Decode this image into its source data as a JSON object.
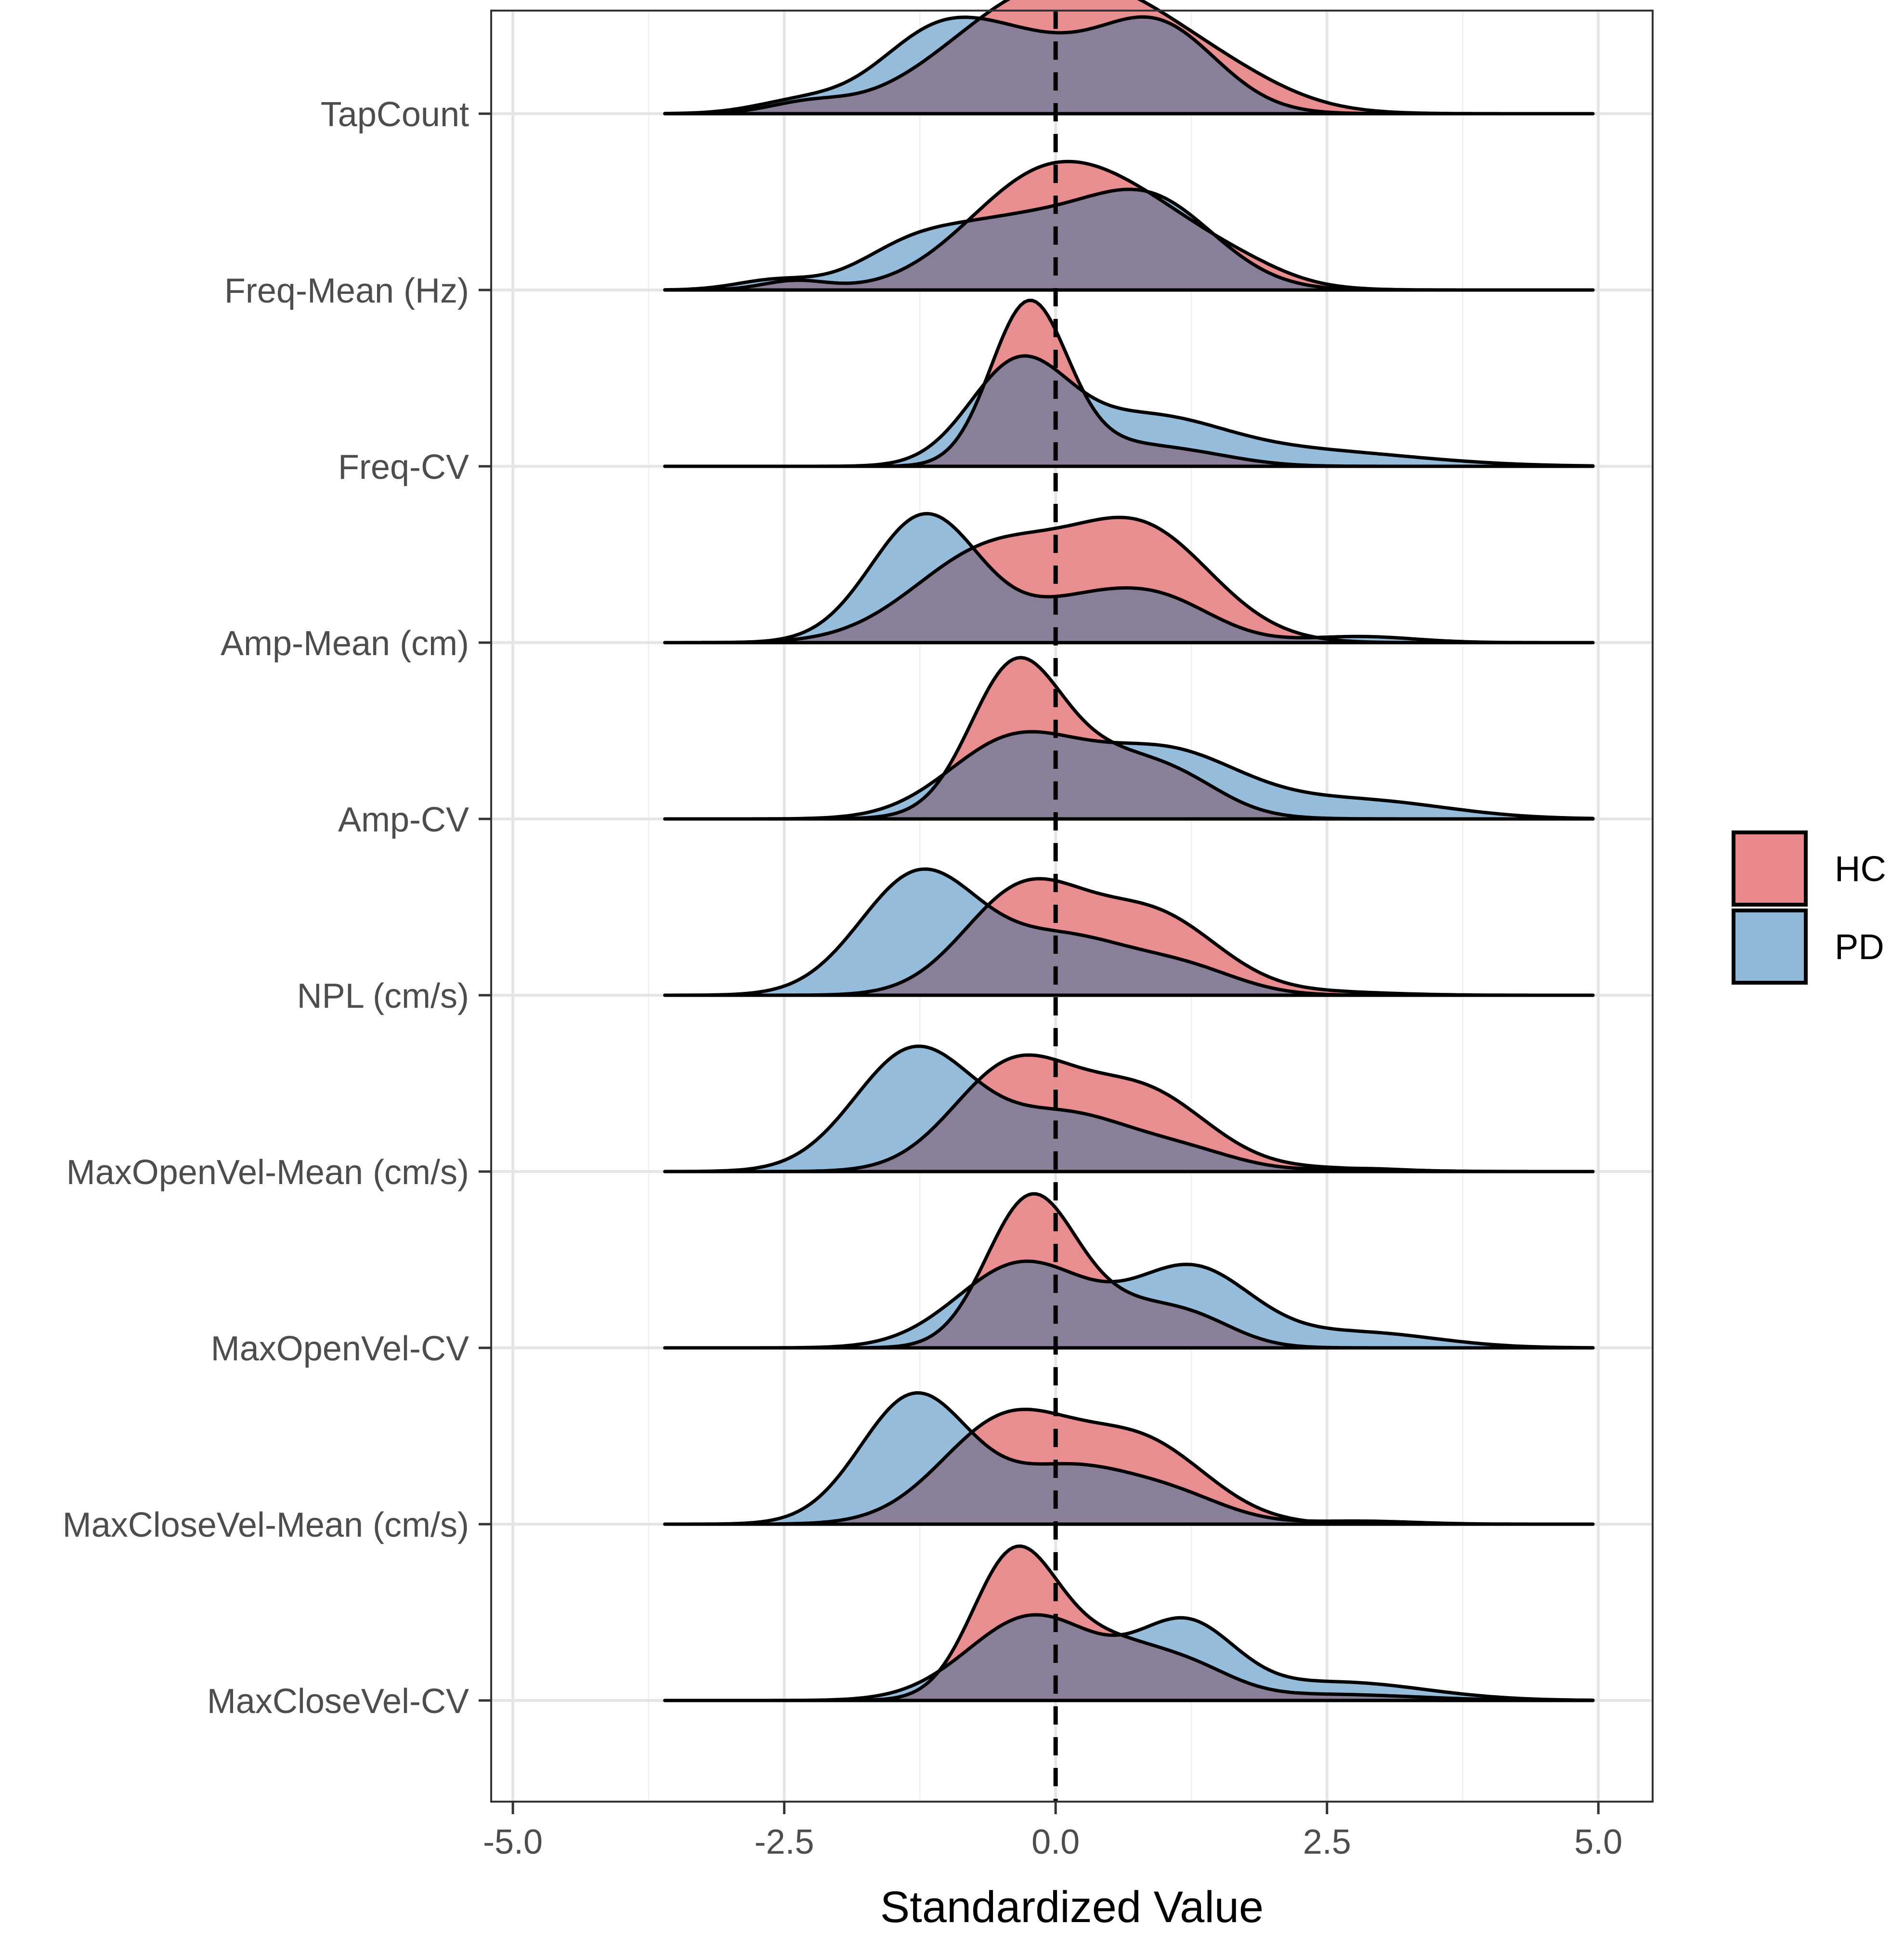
{
  "chart_data": {
    "type": "ridgeline-density",
    "title": "",
    "xlabel": "Standardized Value",
    "ylabel": "",
    "xlim": [
      -5.2,
      5.5
    ],
    "x_ticks": [
      -5.0,
      -2.5,
      0.0,
      2.5,
      5.0
    ],
    "x_tick_labels": [
      "-5.0",
      "-2.5",
      "0.0",
      "2.5",
      "5.0"
    ],
    "reference_line": {
      "x": 0,
      "style": "dashed"
    },
    "grid": true,
    "legend": {
      "position": "right",
      "entries": [
        {
          "name": "HC",
          "color": "#e8888a"
        },
        {
          "name": "PD",
          "color": "#8fb8d8"
        }
      ]
    },
    "colors": {
      "HC": "#e8888a",
      "PD": "#8fb8d8",
      "overlap": "#8a7f99",
      "line": "#000000"
    },
    "density_x_range": [
      -3.6,
      4.95
    ],
    "density_peak_scale": 0.36,
    "categories": [
      "TapCount",
      "Freq-Mean (Hz)",
      "Freq-CV",
      "Amp-Mean (cm)",
      "Amp-CV",
      "NPL (cm/s)",
      "MaxOpenVel-Mean (cm/s)",
      "MaxOpenVel-CV",
      "MaxCloseVel-Mean (cm/s)",
      "MaxCloseVel-CV"
    ],
    "series": [
      {
        "name": "HC",
        "densities": [
          [
            [
              -0.2,
              0.85,
              0.34
            ],
            [
              0.9,
              0.8,
              0.2
            ],
            [
              -2.3,
              0.35,
              0.03
            ],
            [
              1.8,
              0.5,
              0.02
            ]
          ],
          [
            [
              -0.15,
              0.7,
              0.34
            ],
            [
              0.9,
              0.7,
              0.2
            ],
            [
              -2.4,
              0.3,
              0.03
            ],
            [
              1.8,
              0.4,
              0.02
            ]
          ],
          [
            [
              -0.25,
              0.35,
              0.52
            ],
            [
              0.4,
              0.5,
              0.06
            ],
            [
              1.2,
              0.5,
              0.04
            ]
          ],
          [
            [
              -0.6,
              0.7,
              0.3
            ],
            [
              0.8,
              0.65,
              0.36
            ]
          ],
          [
            [
              -0.4,
              0.4,
              0.4
            ],
            [
              0.35,
              0.7,
              0.22
            ],
            [
              1.2,
              0.4,
              0.05
            ]
          ],
          [
            [
              -0.3,
              0.55,
              0.34
            ],
            [
              0.9,
              0.6,
              0.26
            ],
            [
              2.5,
              0.6,
              0.01
            ]
          ],
          [
            [
              -0.4,
              0.55,
              0.34
            ],
            [
              0.8,
              0.6,
              0.26
            ],
            [
              2.5,
              0.6,
              0.01
            ]
          ],
          [
            [
              -0.25,
              0.4,
              0.44
            ],
            [
              0.5,
              0.6,
              0.14
            ],
            [
              1.3,
              0.4,
              0.06
            ]
          ],
          [
            [
              -0.45,
              0.6,
              0.34
            ],
            [
              0.8,
              0.6,
              0.26
            ]
          ],
          [
            [
              -0.4,
              0.38,
              0.42
            ],
            [
              0.4,
              0.6,
              0.2
            ],
            [
              1.3,
              0.4,
              0.06
            ],
            [
              2.5,
              0.8,
              0.02
            ]
          ]
        ]
      },
      {
        "name": "PD",
        "densities": [
          [
            [
              -0.6,
              0.8,
              0.27
            ],
            [
              0.95,
              0.55,
              0.27
            ],
            [
              -2.4,
              0.4,
              0.03
            ],
            [
              -1.2,
              0.45,
              0.08
            ]
          ],
          [
            [
              -0.4,
              0.8,
              0.22
            ],
            [
              0.9,
              0.6,
              0.26
            ],
            [
              -1.4,
              0.45,
              0.07
            ],
            [
              -2.6,
              0.35,
              0.03
            ]
          ],
          [
            [
              -0.35,
              0.45,
              0.32
            ],
            [
              0.8,
              0.7,
              0.15
            ],
            [
              2.3,
              1.0,
              0.05
            ]
          ],
          [
            [
              -1.2,
              0.5,
              0.42
            ],
            [
              0.2,
              0.55,
              0.12
            ],
            [
              1.0,
              0.5,
              0.12
            ],
            [
              2.8,
              0.5,
              0.02
            ]
          ],
          [
            [
              -0.4,
              0.6,
              0.25
            ],
            [
              1.0,
              0.7,
              0.22
            ],
            [
              2.8,
              0.8,
              0.06
            ]
          ],
          [
            [
              -1.25,
              0.55,
              0.4
            ],
            [
              0.1,
              0.6,
              0.18
            ],
            [
              1.2,
              0.5,
              0.08
            ]
          ],
          [
            [
              -1.3,
              0.55,
              0.4
            ],
            [
              0.1,
              0.6,
              0.18
            ],
            [
              1.2,
              0.5,
              0.06
            ],
            [
              2.8,
              0.4,
              0.01
            ]
          ],
          [
            [
              -0.3,
              0.6,
              0.28
            ],
            [
              1.25,
              0.55,
              0.26
            ],
            [
              2.8,
              0.7,
              0.05
            ]
          ],
          [
            [
              -1.3,
              0.5,
              0.42
            ],
            [
              0.1,
              0.6,
              0.18
            ],
            [
              1.1,
              0.5,
              0.08
            ],
            [
              2.8,
              0.5,
              0.01
            ]
          ],
          [
            [
              -0.2,
              0.6,
              0.28
            ],
            [
              1.2,
              0.45,
              0.24
            ],
            [
              2.6,
              0.8,
              0.06
            ]
          ]
        ]
      }
    ]
  }
}
